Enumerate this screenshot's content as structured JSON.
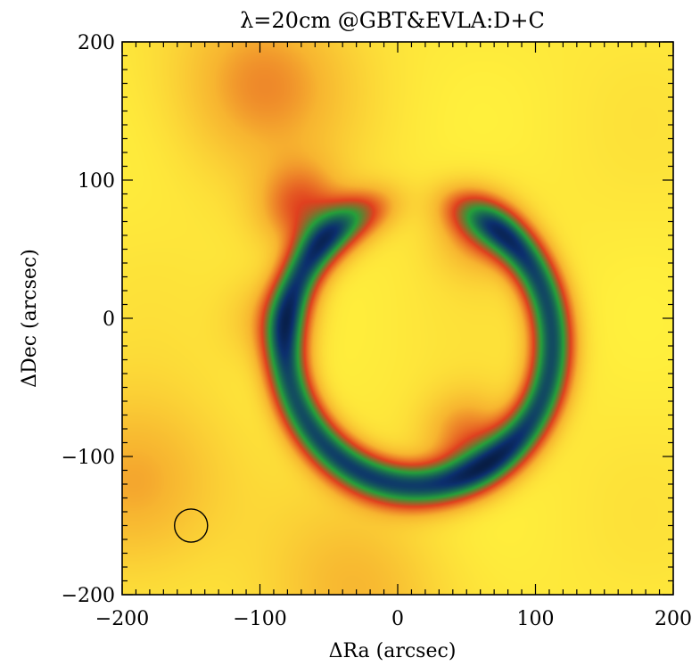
{
  "chart_data": {
    "type": "heatmap",
    "title": "λ=20cm @GBT&EVLA:D+C",
    "xlabel": "ΔRa (arcsec)",
    "ylabel": "ΔDec (arcsec)",
    "xlim": [
      -200,
      200
    ],
    "ylim": [
      -200,
      200
    ],
    "x_ticks": [
      -200,
      -100,
      0,
      100,
      200
    ],
    "y_ticks": [
      -200,
      -100,
      0,
      100,
      200
    ],
    "x_tick_labels": [
      "−200",
      "−100",
      "0",
      "100",
      "200"
    ],
    "y_tick_labels": [
      "−200",
      "−100",
      "0",
      "100",
      "200"
    ],
    "colormap": [
      "#fff03c",
      "#f7b530",
      "#e0401f",
      "#25a03a",
      "#0c2f6e",
      "#000000"
    ],
    "ring": {
      "center": [
        15,
        -18
      ],
      "radius_x": 97,
      "radius_y": 103,
      "width": 24,
      "gap_angle_deg": 90,
      "gap_width_deg": 35
    },
    "blobs": [
      {
        "x": -70,
        "y": 80,
        "level": 5.0
      },
      {
        "x": 58,
        "y": 62,
        "level": 4.5
      },
      {
        "x": -93,
        "y": 0,
        "level": 4.2
      },
      {
        "x": 50,
        "y": -85,
        "level": 4.8
      },
      {
        "x": -100,
        "y": 170,
        "level": 1.2
      },
      {
        "x": -190,
        "y": -120,
        "level": 1.1
      },
      {
        "x": -30,
        "y": -200,
        "level": 0.8
      }
    ],
    "beam": {
      "x": -150,
      "y": -150,
      "radius": 12
    }
  }
}
